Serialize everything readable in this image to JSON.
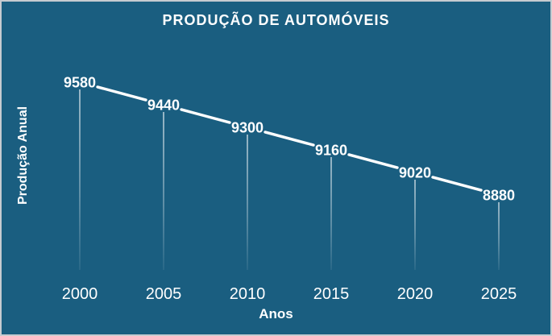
{
  "window": {
    "background_color": "#1a5e80",
    "border_color": "#c6cbd0",
    "text_color": "#ffffff"
  },
  "chart_data": {
    "type": "line",
    "title": "PRODUÇÃO DE AUTOMÓVEIS",
    "xlabel": "Anos",
    "ylabel": "Produção Anual",
    "categories": [
      "2000",
      "2005",
      "2010",
      "2015",
      "2020",
      "2025"
    ],
    "series": [
      {
        "name": "Produção Anual",
        "values": [
          9580,
          9440,
          9300,
          9160,
          9020,
          8880
        ]
      }
    ],
    "data_labels_shown": true,
    "line_color": "#ffffff",
    "label_color": "#ffffff",
    "stem_color": "#ffffff",
    "grid": false,
    "legend": false,
    "y_axis_ticks_shown": false,
    "value_range": [
      8880,
      9580
    ]
  }
}
